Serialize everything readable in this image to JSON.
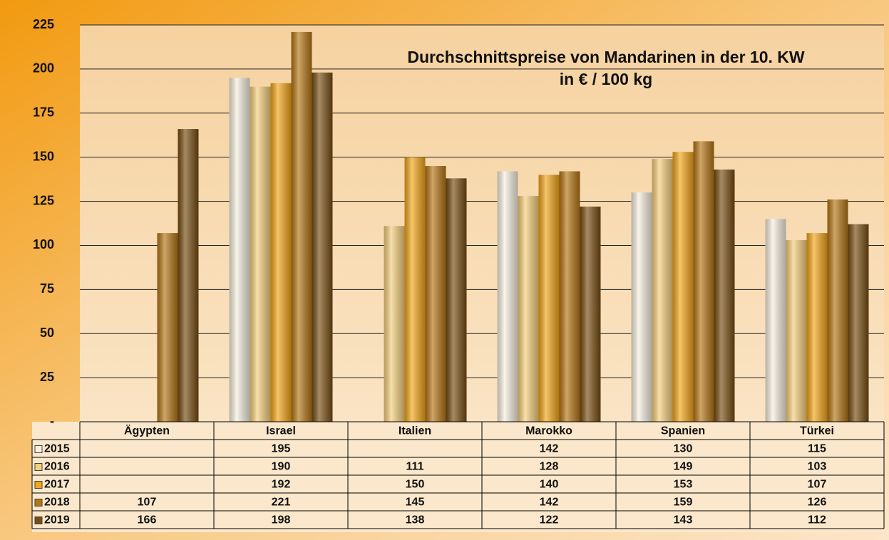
{
  "chart_data": {
    "type": "bar",
    "title": "Durchschnittspreise von Mandarinen in der 10. KW",
    "subtitle": "in € / 100 kg",
    "categories": [
      "Ägypten",
      "Israel",
      "Italien",
      "Marokko",
      "Spanien",
      "Türkei"
    ],
    "series": [
      {
        "name": "2015",
        "color": "#f7efdf",
        "values": [
          null,
          195,
          null,
          142,
          130,
          115
        ]
      },
      {
        "name": "2016",
        "color": "#f6cf7c",
        "values": [
          null,
          190,
          111,
          128,
          149,
          103
        ]
      },
      {
        "name": "2017",
        "color": "#f3a61a",
        "values": [
          null,
          192,
          150,
          140,
          153,
          107
        ]
      },
      {
        "name": "2018",
        "color": "#b57616",
        "values": [
          107,
          221,
          145,
          142,
          159,
          126
        ]
      },
      {
        "name": "2019",
        "color": "#774e12",
        "values": [
          166,
          198,
          138,
          122,
          143,
          112
        ]
      }
    ],
    "ylim": [
      0,
      225
    ],
    "yticks": [
      {
        "value": 0,
        "label": "-"
      },
      25,
      50,
      75,
      100,
      125,
      150,
      175,
      200,
      225
    ],
    "grid": true
  }
}
